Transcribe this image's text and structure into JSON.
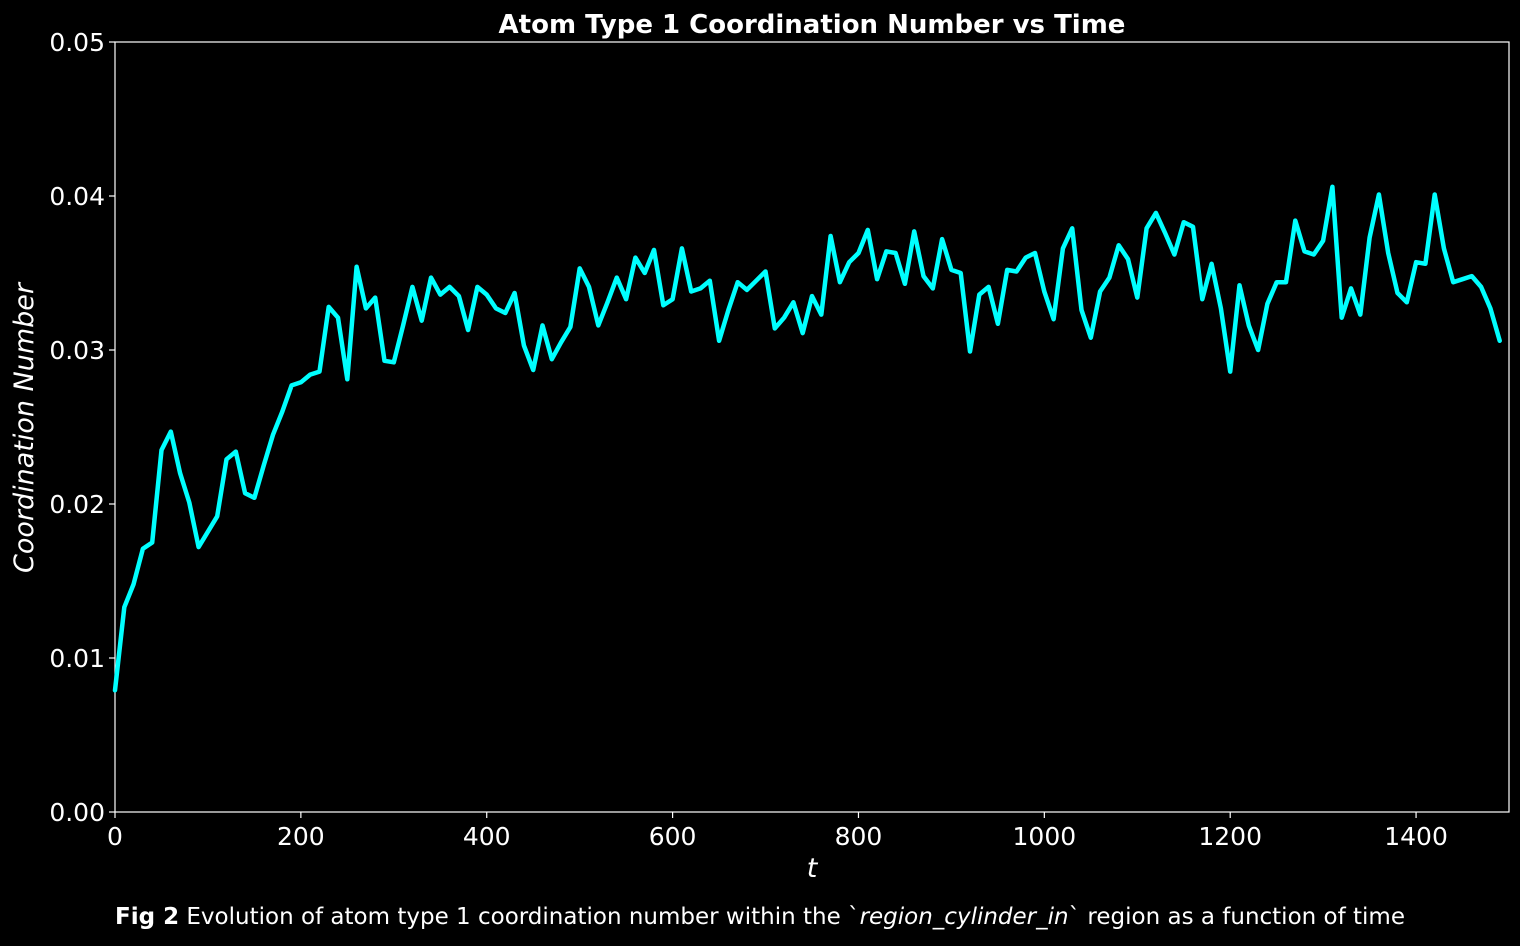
{
  "chart_data": {
    "type": "line",
    "title": "Atom Type 1 Coordination Number vs Time",
    "xlabel": "t",
    "ylabel": "Coordination Number",
    "xlim": [
      0,
      1500
    ],
    "ylim": [
      0,
      0.05
    ],
    "xticks": [
      0,
      200,
      400,
      600,
      800,
      1000,
      1200,
      1400
    ],
    "xtick_labels": [
      "0",
      "200",
      "400",
      "600",
      "800",
      "1000",
      "1200",
      "1400"
    ],
    "yticks": [
      0,
      0.01,
      0.02,
      0.03,
      0.04,
      0.05
    ],
    "ytick_labels": [
      "0.00",
      "0.01",
      "0.02",
      "0.03",
      "0.04",
      "0.05"
    ],
    "grid": false,
    "line_color": "#00FFFF",
    "background": "#000000",
    "series": [
      {
        "x": [
          0,
          10,
          20,
          30,
          40,
          50,
          60,
          70,
          80,
          90,
          100,
          110,
          120,
          130,
          140,
          150,
          160,
          170,
          180,
          190,
          200,
          210,
          220,
          230,
          240,
          250,
          260,
          270,
          280,
          290,
          300,
          310,
          320,
          330,
          340,
          350,
          360,
          370,
          380,
          390,
          400,
          410,
          420,
          430,
          440,
          450,
          460,
          470,
          480,
          490,
          500,
          510,
          520,
          530,
          540,
          550,
          560,
          570,
          580,
          590,
          600,
          610,
          620,
          630,
          640,
          650,
          660,
          670,
          680,
          690,
          700,
          710,
          720,
          730,
          740,
          750,
          760,
          770,
          780,
          790,
          800,
          810,
          820,
          830,
          840,
          850,
          860,
          870,
          880,
          890,
          900,
          910,
          920,
          930,
          940,
          950,
          960,
          970,
          980,
          990,
          1000,
          1010,
          1020,
          1030,
          1040,
          1050,
          1060,
          1070,
          1080,
          1090,
          1100,
          1110,
          1120,
          1130,
          1140,
          1150,
          1160,
          1170,
          1180,
          1190,
          1200,
          1210,
          1220,
          1230,
          1240,
          1250,
          1260,
          1270,
          1280,
          1290,
          1300,
          1310,
          1320,
          1330,
          1340,
          1350,
          1360,
          1370,
          1380,
          1390,
          1400,
          1410,
          1420,
          1430,
          1440,
          1450,
          1460,
          1470,
          1480,
          1490
        ],
        "y": [
          0.0079,
          0.0133,
          0.0148,
          0.0171,
          0.0175,
          0.0235,
          0.0247,
          0.022,
          0.0201,
          0.0172,
          0.0182,
          0.0192,
          0.0229,
          0.0234,
          0.0207,
          0.0204,
          0.0225,
          0.0245,
          0.026,
          0.0277,
          0.0279,
          0.0284,
          0.0286,
          0.0328,
          0.0321,
          0.0281,
          0.0354,
          0.0327,
          0.0334,
          0.0293,
          0.0292,
          0.0316,
          0.0341,
          0.0319,
          0.0347,
          0.0336,
          0.0341,
          0.0335,
          0.0313,
          0.0341,
          0.0336,
          0.0327,
          0.0324,
          0.0337,
          0.0303,
          0.0287,
          0.0316,
          0.0294,
          0.0305,
          0.0315,
          0.0353,
          0.0341,
          0.0316,
          0.0331,
          0.0347,
          0.0333,
          0.036,
          0.035,
          0.0365,
          0.0329,
          0.0333,
          0.0366,
          0.0338,
          0.034,
          0.0345,
          0.0306,
          0.0326,
          0.0344,
          0.0339,
          0.0345,
          0.0351,
          0.0314,
          0.0321,
          0.0331,
          0.0311,
          0.0335,
          0.0323,
          0.0374,
          0.0344,
          0.0357,
          0.0363,
          0.0378,
          0.0346,
          0.0364,
          0.0363,
          0.0343,
          0.0377,
          0.0348,
          0.034,
          0.0372,
          0.0352,
          0.035,
          0.0299,
          0.0336,
          0.0341,
          0.0317,
          0.0352,
          0.0351,
          0.036,
          0.0363,
          0.0338,
          0.032,
          0.0366,
          0.0379,
          0.0326,
          0.0308,
          0.0338,
          0.0347,
          0.0368,
          0.0359,
          0.0334,
          0.0379,
          0.0389,
          0.0376,
          0.0362,
          0.0383,
          0.038,
          0.0333,
          0.0356,
          0.0327,
          0.0286,
          0.0342,
          0.0316,
          0.03,
          0.033,
          0.0344,
          0.0344,
          0.0384,
          0.0364,
          0.0362,
          0.0371,
          0.0406,
          0.0321,
          0.034,
          0.0323,
          0.0373,
          0.0401,
          0.0363,
          0.0337,
          0.0331,
          0.0357,
          0.0356,
          0.0401,
          0.0366,
          0.0344,
          0.0346,
          0.0348,
          0.0341,
          0.0327,
          0.0306
        ]
      }
    ]
  },
  "caption": {
    "fig_label": "Fig 2",
    "text_before": " Evolution of atom type 1 coordination number within the `",
    "region": "region_cylinder_in",
    "text_after": "` region as a function of time"
  }
}
